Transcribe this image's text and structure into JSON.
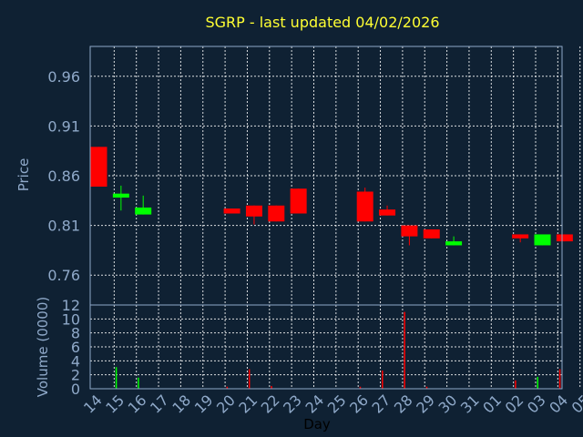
{
  "chart_data": [
    {
      "type": "candlestick",
      "title": "SGRP - last updated 04/02/2026",
      "ylabel": "Price",
      "ylim": [
        0.73,
        0.99
      ],
      "yticks": [
        "0.96",
        "0.91",
        "0.86",
        "0.81",
        "0.76"
      ],
      "ytick_values": [
        0.96,
        0.91,
        0.86,
        0.81,
        0.76
      ],
      "grid": true,
      "candles": [
        {
          "day": "14",
          "open": 0.889,
          "close": 0.849,
          "high": 0.889,
          "low": 0.849,
          "color": "red"
        },
        {
          "day": "15",
          "open": 0.838,
          "close": 0.842,
          "high": 0.85,
          "low": 0.825,
          "color": "green"
        },
        {
          "day": "16",
          "open": 0.821,
          "close": 0.828,
          "high": 0.84,
          "low": 0.821,
          "color": "green"
        },
        {
          "day": "20",
          "open": 0.827,
          "close": 0.822,
          "high": 0.827,
          "low": 0.822,
          "color": "red"
        },
        {
          "day": "21",
          "open": 0.83,
          "close": 0.819,
          "high": 0.83,
          "low": 0.811,
          "color": "red"
        },
        {
          "day": "22",
          "open": 0.83,
          "close": 0.814,
          "high": 0.83,
          "low": 0.814,
          "color": "red"
        },
        {
          "day": "23",
          "open": 0.847,
          "close": 0.822,
          "high": 0.847,
          "low": 0.822,
          "color": "red"
        },
        {
          "day": "26",
          "open": 0.844,
          "close": 0.814,
          "high": 0.848,
          "low": 0.814,
          "color": "red"
        },
        {
          "day": "27",
          "open": 0.826,
          "close": 0.82,
          "high": 0.83,
          "low": 0.82,
          "color": "red"
        },
        {
          "day": "28",
          "open": 0.81,
          "close": 0.799,
          "high": 0.81,
          "low": 0.79,
          "color": "red"
        },
        {
          "day": "29",
          "open": 0.806,
          "close": 0.797,
          "high": 0.806,
          "low": 0.797,
          "color": "red"
        },
        {
          "day": "30",
          "open": 0.79,
          "close": 0.794,
          "high": 0.799,
          "low": 0.79,
          "color": "green"
        },
        {
          "day": "02",
          "open": 0.801,
          "close": 0.797,
          "high": 0.801,
          "low": 0.793,
          "color": "red"
        },
        {
          "day": "03",
          "open": 0.79,
          "close": 0.801,
          "high": 0.801,
          "low": 0.79,
          "color": "green"
        },
        {
          "day": "04",
          "open": 0.801,
          "close": 0.794,
          "high": 0.801,
          "low": 0.794,
          "color": "red"
        }
      ]
    },
    {
      "type": "bar",
      "ylabel": "Volume (0000)",
      "xlabel": "Day",
      "ylim": [
        0,
        12
      ],
      "yticks": [
        "12",
        "10",
        "8",
        "6",
        "4",
        "2",
        "0"
      ],
      "ytick_values": [
        12,
        10,
        8,
        6,
        4,
        2,
        0
      ],
      "categories": [
        "14",
        "15",
        "16",
        "17",
        "18",
        "19",
        "20",
        "21",
        "22",
        "23",
        "24",
        "25",
        "26",
        "27",
        "28",
        "29",
        "30",
        "31",
        "01",
        "02",
        "03",
        "04",
        "05"
      ],
      "bars": [
        {
          "day": "15",
          "value": 3.1,
          "color": "green"
        },
        {
          "day": "16",
          "value": 1.6,
          "color": "green"
        },
        {
          "day": "20",
          "value": 0.3,
          "color": "red"
        },
        {
          "day": "21",
          "value": 2.8,
          "color": "red"
        },
        {
          "day": "22",
          "value": 0.4,
          "color": "red"
        },
        {
          "day": "26",
          "value": 0.3,
          "color": "red"
        },
        {
          "day": "27",
          "value": 2.6,
          "color": "red"
        },
        {
          "day": "28",
          "value": 11.0,
          "color": "red"
        },
        {
          "day": "29",
          "value": 0.3,
          "color": "red"
        },
        {
          "day": "02",
          "value": 1.2,
          "color": "red"
        },
        {
          "day": "03",
          "value": 1.7,
          "color": "green"
        },
        {
          "day": "04",
          "value": 2.8,
          "color": "red"
        }
      ],
      "grid": true
    }
  ],
  "colors": {
    "background": "#0f2133",
    "text": "#8fa9c9",
    "title": "#ffff33",
    "up": "#00ff00",
    "down": "#ff0000",
    "grid": "#ffffff"
  }
}
